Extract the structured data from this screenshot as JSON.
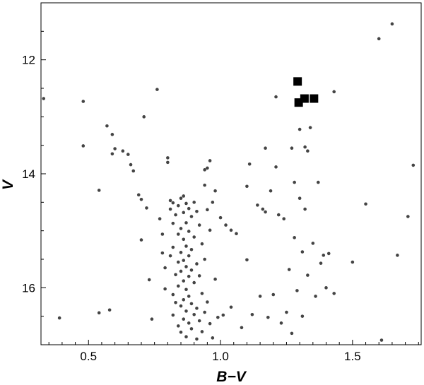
{
  "chart_data": {
    "type": "scatter",
    "title": "",
    "xlabel": "B−V",
    "ylabel": "V",
    "xlim": [
      0.32,
      1.76
    ],
    "ylim": [
      17.0,
      11.0
    ],
    "y_inverted": true,
    "grid": false,
    "x_ticks": [
      {
        "value": 0.5,
        "label": "0.5"
      },
      {
        "value": 1.0,
        "label": "1.0"
      },
      {
        "value": 1.5,
        "label": "1.5"
      }
    ],
    "y_ticks": [
      {
        "value": 12,
        "label": "12"
      },
      {
        "value": 14,
        "label": "14"
      },
      {
        "value": 16,
        "label": "16"
      }
    ],
    "series": [
      {
        "marker": "circle",
        "color": "#444444",
        "points": [
          [
            0.33,
            12.68
          ],
          [
            0.39,
            16.53
          ],
          [
            0.48,
            12.73
          ],
          [
            0.48,
            13.51
          ],
          [
            0.54,
            14.29
          ],
          [
            0.54,
            16.44
          ],
          [
            0.57,
            13.16
          ],
          [
            0.58,
            16.39
          ],
          [
            0.59,
            13.65
          ],
          [
            0.59,
            13.31
          ],
          [
            0.6,
            13.56
          ],
          [
            0.63,
            13.6
          ],
          [
            0.65,
            13.66
          ],
          [
            0.66,
            13.84
          ],
          [
            0.67,
            13.95
          ],
          [
            0.69,
            14.37
          ],
          [
            0.7,
            14.45
          ],
          [
            0.7,
            15.16
          ],
          [
            0.71,
            13.0
          ],
          [
            0.72,
            14.6
          ],
          [
            0.73,
            15.86
          ],
          [
            0.74,
            16.55
          ],
          [
            0.76,
            12.52
          ],
          [
            0.77,
            14.79
          ],
          [
            0.78,
            15.06
          ],
          [
            0.78,
            15.39
          ],
          [
            0.79,
            16.02
          ],
          [
            0.79,
            15.65
          ],
          [
            0.8,
            13.72
          ],
          [
            0.8,
            13.8
          ],
          [
            0.81,
            14.47
          ],
          [
            0.81,
            14.62
          ],
          [
            0.81,
            15.44
          ],
          [
            0.82,
            14.51
          ],
          [
            0.82,
            14.87
          ],
          [
            0.82,
            15.29
          ],
          [
            0.82,
            16.12
          ],
          [
            0.82,
            16.48
          ],
          [
            0.83,
            14.72
          ],
          [
            0.83,
            15.77
          ],
          [
            0.83,
            16.26
          ],
          [
            0.84,
            14.56
          ],
          [
            0.84,
            15.06
          ],
          [
            0.84,
            15.55
          ],
          [
            0.84,
            15.97
          ],
          [
            0.84,
            16.67
          ],
          [
            0.85,
            14.43
          ],
          [
            0.85,
            14.96
          ],
          [
            0.85,
            15.38
          ],
          [
            0.85,
            15.71
          ],
          [
            0.85,
            16.32
          ],
          [
            0.85,
            16.78
          ],
          [
            0.86,
            14.39
          ],
          [
            0.86,
            14.68
          ],
          [
            0.86,
            15.15
          ],
          [
            0.86,
            15.52
          ],
          [
            0.86,
            15.88
          ],
          [
            0.86,
            16.21
          ],
          [
            0.86,
            16.55
          ],
          [
            0.87,
            14.52
          ],
          [
            0.87,
            14.86
          ],
          [
            0.87,
            15.27
          ],
          [
            0.87,
            15.63
          ],
          [
            0.87,
            16.03
          ],
          [
            0.87,
            16.41
          ],
          [
            0.87,
            16.86
          ],
          [
            0.88,
            14.61
          ],
          [
            0.88,
            15.01
          ],
          [
            0.88,
            15.44
          ],
          [
            0.88,
            15.8
          ],
          [
            0.88,
            16.15
          ],
          [
            0.88,
            16.62
          ],
          [
            0.89,
            14.75
          ],
          [
            0.89,
            15.33
          ],
          [
            0.89,
            15.69
          ],
          [
            0.89,
            16.28
          ],
          [
            0.89,
            16.72
          ],
          [
            0.9,
            14.5
          ],
          [
            0.9,
            15.11
          ],
          [
            0.9,
            15.91
          ],
          [
            0.9,
            16.47
          ],
          [
            0.91,
            14.66
          ],
          [
            0.91,
            15.58
          ],
          [
            0.91,
            16.36
          ],
          [
            0.91,
            16.9
          ],
          [
            0.92,
            14.9
          ],
          [
            0.92,
            15.79
          ],
          [
            0.92,
            16.58
          ],
          [
            0.93,
            15.23
          ],
          [
            0.93,
            16.1
          ],
          [
            0.93,
            16.77
          ],
          [
            0.94,
            13.93
          ],
          [
            0.94,
            14.2
          ],
          [
            0.94,
            15.5
          ],
          [
            0.94,
            16.43
          ],
          [
            0.95,
            13.9
          ],
          [
            0.95,
            14.63
          ],
          [
            0.95,
            16.25
          ],
          [
            0.96,
            13.77
          ],
          [
            0.96,
            14.99
          ],
          [
            0.96,
            16.63
          ],
          [
            0.97,
            14.5
          ],
          [
            0.97,
            16.88
          ],
          [
            0.98,
            14.3
          ],
          [
            0.98,
            15.85
          ],
          [
            0.99,
            16.52
          ],
          [
            1.0,
            14.77
          ],
          [
            1.01,
            16.48
          ],
          [
            1.02,
            14.9
          ],
          [
            1.04,
            14.99
          ],
          [
            1.04,
            16.34
          ],
          [
            1.06,
            15.05
          ],
          [
            1.08,
            16.7
          ],
          [
            1.1,
            14.22
          ],
          [
            1.1,
            15.51
          ],
          [
            1.11,
            13.83
          ],
          [
            1.12,
            16.47
          ],
          [
            1.14,
            14.55
          ],
          [
            1.15,
            16.15
          ],
          [
            1.16,
            14.62
          ],
          [
            1.17,
            13.55
          ],
          [
            1.17,
            14.67
          ],
          [
            1.18,
            16.52
          ],
          [
            1.19,
            14.3
          ],
          [
            1.2,
            16.12
          ],
          [
            1.21,
            12.65
          ],
          [
            1.21,
            13.88
          ],
          [
            1.22,
            14.72
          ],
          [
            1.23,
            16.62
          ],
          [
            1.24,
            14.79
          ],
          [
            1.25,
            16.43
          ],
          [
            1.26,
            15.68
          ],
          [
            1.27,
            13.55
          ],
          [
            1.27,
            16.8
          ],
          [
            1.28,
            14.15
          ],
          [
            1.28,
            15.12
          ],
          [
            1.29,
            16.05
          ],
          [
            1.3,
            13.22
          ],
          [
            1.3,
            14.43
          ],
          [
            1.31,
            15.37
          ],
          [
            1.31,
            16.5
          ],
          [
            1.32,
            13.53
          ],
          [
            1.32,
            14.62
          ],
          [
            1.33,
            13.6
          ],
          [
            1.33,
            15.78
          ],
          [
            1.34,
            13.19
          ],
          [
            1.35,
            15.22
          ],
          [
            1.36,
            16.15
          ],
          [
            1.37,
            14.15
          ],
          [
            1.38,
            15.57
          ],
          [
            1.39,
            15.43
          ],
          [
            1.4,
            16.0
          ],
          [
            1.41,
            15.4
          ],
          [
            1.43,
            12.56
          ],
          [
            1.43,
            16.1
          ],
          [
            1.5,
            15.55
          ],
          [
            1.55,
            14.53
          ],
          [
            1.6,
            11.63
          ],
          [
            1.61,
            16.92
          ],
          [
            1.65,
            11.37
          ],
          [
            1.67,
            15.43
          ],
          [
            1.71,
            14.75
          ],
          [
            1.73,
            13.85
          ]
        ]
      },
      {
        "marker": "square",
        "color": "#000000",
        "points": [
          [
            1.292,
            12.38
          ],
          [
            1.296,
            12.75
          ],
          [
            1.318,
            12.68
          ],
          [
            1.354,
            12.68
          ]
        ]
      }
    ]
  }
}
